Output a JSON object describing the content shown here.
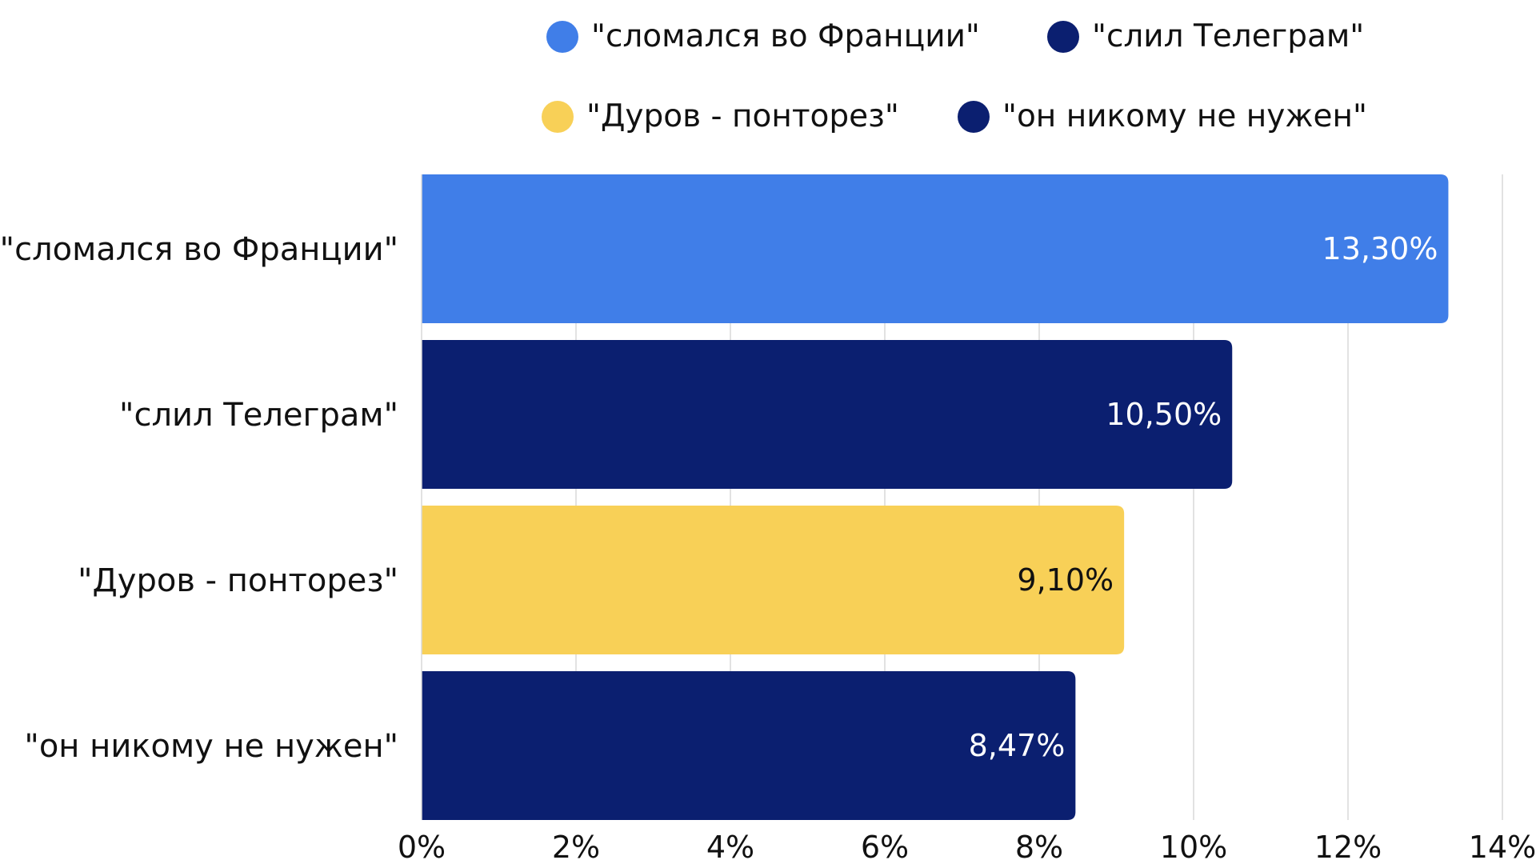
{
  "chart_data": {
    "type": "bar",
    "orientation": "horizontal",
    "categories": [
      "\"сломался во Франции\"",
      "\"слил Телеграм\"",
      "\"Дуров - понторез\"",
      "\"он никому не нужен\""
    ],
    "values": [
      13.3,
      10.5,
      9.1,
      8.47
    ],
    "data_labels": [
      "13,30%",
      "10,50%",
      "9,10%",
      "8,47%"
    ],
    "colors": [
      "#407EE8",
      "#0B1F70",
      "#F8D057",
      "#0B1F70"
    ],
    "label_colors": [
      "#ffffff",
      "#ffffff",
      "#111111",
      "#ffffff"
    ],
    "xlim": [
      0,
      14
    ],
    "x_ticks": [
      0,
      2,
      4,
      6,
      8,
      10,
      12,
      14
    ],
    "x_tick_labels": [
      "0%",
      "2%",
      "4%",
      "6%",
      "8%",
      "10%",
      "12%",
      "14%"
    ],
    "grid": "vertical",
    "legend_position": "top",
    "legend": [
      {
        "label": "\"сломался во Франции\"",
        "color": "#407EE8"
      },
      {
        "label": "\"слил Телеграм\"",
        "color": "#0B1F70"
      },
      {
        "label": "\"Дуров - понторез\"",
        "color": "#F8D057"
      },
      {
        "label": "\"он никому не нужен\"",
        "color": "#0B1F70"
      }
    ]
  }
}
